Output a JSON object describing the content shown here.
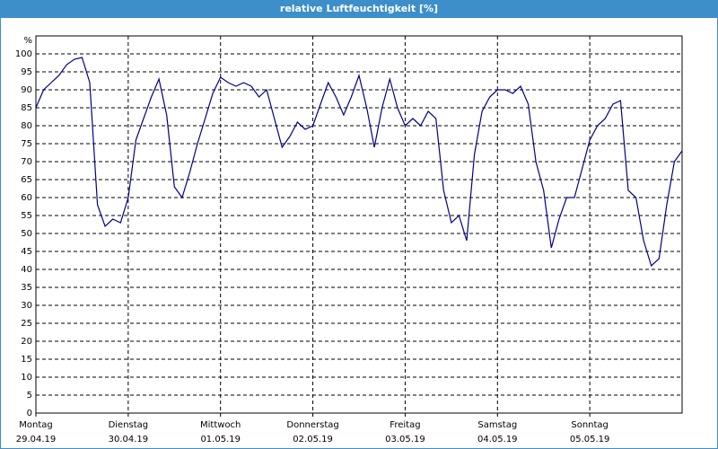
{
  "chart_data": {
    "type": "line",
    "title": "relative Luftfeuchtigkeit [%]",
    "y_unit": "%",
    "xlim": [
      0,
      84
    ],
    "xticks": [
      {
        "value": 0,
        "weekday": "Montag",
        "date": "29.04.19"
      },
      {
        "value": 12,
        "weekday": "Dienstag",
        "date": "30.04.19"
      },
      {
        "value": 24,
        "weekday": "Mittwoch",
        "date": "01.05.19"
      },
      {
        "value": 36,
        "weekday": "Donnerstag",
        "date": "02.05.19"
      },
      {
        "value": 48,
        "weekday": "Freitag",
        "date": "03.05.19"
      },
      {
        "value": 60,
        "weekday": "Samstag",
        "date": "04.05.19"
      },
      {
        "value": 72,
        "weekday": "Sonntag",
        "date": "05.05.19"
      }
    ],
    "ylim": [
      0,
      100
    ],
    "yticks": [
      0,
      5,
      10,
      15,
      20,
      25,
      30,
      35,
      40,
      45,
      50,
      55,
      60,
      65,
      70,
      75,
      80,
      85,
      90,
      95,
      100
    ],
    "grid": true,
    "series": [
      {
        "color": "#00008b",
        "values": [
          85,
          90,
          92,
          94,
          97,
          98.5,
          99,
          92,
          58,
          52,
          54,
          53,
          60,
          76,
          82,
          88,
          93,
          83,
          63,
          60,
          67,
          75,
          82,
          89,
          93.5,
          92,
          91,
          92,
          91,
          88,
          90,
          82,
          74,
          77,
          81,
          79,
          80,
          86,
          92,
          88,
          83,
          88,
          94,
          85,
          74,
          85,
          93,
          85,
          80,
          82,
          80,
          84,
          82,
          62,
          53,
          55,
          48,
          72,
          84,
          88,
          90,
          90,
          89,
          91,
          86,
          70,
          62,
          46,
          54,
          60,
          60,
          68,
          76,
          80,
          82,
          86,
          87,
          62,
          60,
          48,
          41,
          43,
          58,
          70,
          73
        ]
      }
    ]
  }
}
